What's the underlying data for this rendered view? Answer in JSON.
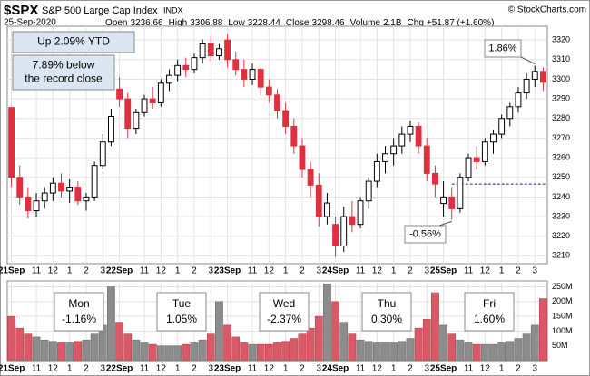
{
  "header": {
    "symbol": "$SPX",
    "name": "S&P 500 Large Cap Index",
    "exchange": "INDX",
    "date": "25-Sep-2020",
    "copyright": "© StockCharts.com",
    "quote": [
      {
        "label": "Open",
        "value": "3236.66"
      },
      {
        "label": "High",
        "value": "3306.88"
      },
      {
        "label": "Low",
        "value": "3228.44"
      },
      {
        "label": "Close",
        "value": "3298.46"
      },
      {
        "label": "Volume",
        "value": "2.1B"
      },
      {
        "label": "Chg",
        "value": "+51.87 (+1.60%)"
      }
    ]
  },
  "chart_data": [
    {
      "type": "candlestick",
      "grid": true,
      "up_color": "#000000",
      "down_color": "#e0303f",
      "categories": [
        "21Sep",
        null,
        null,
        "11",
        null,
        "12",
        null,
        "1",
        null,
        "2",
        null,
        "3",
        null,
        "22Sep",
        null,
        null,
        "11",
        null,
        "12",
        null,
        "1",
        null,
        "2",
        null,
        "3",
        null,
        "23Sep",
        null,
        null,
        "11",
        null,
        "12",
        null,
        "1",
        null,
        "2",
        null,
        "3",
        null,
        "24Sep",
        null,
        null,
        "11",
        null,
        "12",
        null,
        "1",
        null,
        "2",
        null,
        "3",
        null,
        "25Sep",
        null,
        null,
        "11",
        null,
        "12",
        null,
        "1",
        null,
        "2",
        null,
        "3",
        null
      ],
      "open": [
        3285.57,
        3250,
        3240,
        3233,
        3238,
        3242,
        3247,
        3243,
        3245,
        3238,
        3240,
        3256,
        3268,
        3295,
        3290,
        3275,
        3283,
        3290,
        3288,
        3298,
        3302,
        3307,
        3305,
        3311,
        3318,
        3312,
        3320,
        3310,
        3305,
        3300,
        3305,
        3296,
        3292,
        3284,
        3276,
        3266,
        3254,
        3246,
        3230,
        3226,
        3215,
        3230,
        3226,
        3238,
        3248,
        3258,
        3262,
        3266,
        3272,
        3276,
        3266,
        3252,
        3236.66,
        3240,
        3234,
        3250,
        3260,
        3258,
        3268,
        3272,
        3280,
        3286,
        3293,
        3300,
        3304
      ],
      "high": [
        3285.6,
        3256,
        3245,
        3242,
        3245,
        3250,
        3252,
        3249,
        3248,
        3242,
        3258,
        3272,
        3285,
        3301,
        3293,
        3285,
        3292,
        3296,
        3300,
        3305,
        3310,
        3311,
        3313,
        3320.31,
        3322,
        3318,
        3323,
        3314,
        3310,
        3308,
        3306,
        3300,
        3295,
        3288,
        3280,
        3270,
        3258,
        3252,
        3242,
        3230,
        3235,
        3238,
        3240,
        3250,
        3262,
        3266,
        3270,
        3276,
        3279,
        3278,
        3270,
        3256,
        3248,
        3245,
        3252,
        3262,
        3266,
        3270,
        3274,
        3282,
        3288,
        3296,
        3303,
        3306.88,
        3306
      ],
      "low": [
        3245,
        3236,
        3229,
        3230,
        3234,
        3238,
        3240,
        3237,
        3236,
        3233,
        3238,
        3254,
        3266,
        3286,
        3270,
        3272,
        3281,
        3285,
        3286,
        3294,
        3299,
        3301,
        3303,
        3308,
        3309,
        3310,
        3306,
        3302,
        3296,
        3297,
        3292,
        3288,
        3280,
        3272,
        3262,
        3250,
        3240,
        3225,
        3226,
        3209.45,
        3212,
        3222,
        3224,
        3234,
        3245,
        3252,
        3256,
        3262,
        3268,
        3262,
        3248,
        3240,
        3230,
        3228.44,
        3232,
        3248,
        3254,
        3256,
        3262,
        3270,
        3276,
        3283,
        3290,
        3296,
        3294
      ],
      "close": [
        3250,
        3240,
        3233,
        3238,
        3242,
        3247,
        3243,
        3245,
        3238,
        3240,
        3256,
        3268,
        3281.06,
        3290,
        3275,
        3283,
        3290,
        3288,
        3298,
        3302,
        3307,
        3305,
        3311,
        3318,
        3312,
        3315.57,
        3310,
        3305,
        3300,
        3305,
        3296,
        3292,
        3284,
        3276,
        3266,
        3254,
        3246,
        3230,
        3236.92,
        3215,
        3230,
        3226,
        3238,
        3248,
        3258,
        3262,
        3266,
        3272,
        3276,
        3266,
        3252,
        3246.59,
        3240,
        3234,
        3250,
        3260,
        3258,
        3268,
        3272,
        3280,
        3286,
        3293,
        3300,
        3304,
        3298.46
      ],
      "ylim": [
        3206,
        3327
      ],
      "yticks": [
        3210,
        3220,
        3230,
        3240,
        3250,
        3260,
        3270,
        3280,
        3290,
        3300,
        3310,
        3320
      ],
      "reference_line": 3246.59,
      "notes": [
        {
          "text": [
            "Up 2.09% YTD"
          ],
          "color": "#000000"
        },
        {
          "text": [
            "7.89% below",
            "the record close"
          ],
          "color": "#000000"
        },
        {
          "text": [
            "1.86%"
          ],
          "color": "#2a8a2a"
        },
        {
          "text": [
            "-0.56%"
          ],
          "color": "#d0202e"
        }
      ]
    },
    {
      "type": "volume",
      "grid": true,
      "up_color": "#8c8c8c",
      "down_color": "#d95a66",
      "values": [
        150,
        110,
        90,
        80,
        70,
        65,
        60,
        60,
        65,
        70,
        90,
        120,
        250,
        130,
        90,
        70,
        60,
        55,
        50,
        50,
        50,
        55,
        60,
        70,
        90,
        200,
        120,
        80,
        60,
        55,
        55,
        55,
        60,
        65,
        75,
        90,
        110,
        150,
        260,
        200,
        130,
        90,
        70,
        65,
        60,
        60,
        60,
        65,
        75,
        110,
        140,
        230,
        120,
        90,
        70,
        60,
        55,
        55,
        55,
        60,
        65,
        75,
        90,
        120,
        210
      ],
      "ylim": [
        0,
        270
      ],
      "yticks": [
        {
          "value": 50,
          "label": "50M"
        },
        {
          "value": 100,
          "label": "100M"
        },
        {
          "value": 150,
          "label": "150M"
        },
        {
          "value": 200,
          "label": "200M"
        },
        {
          "value": 250,
          "label": "250M"
        }
      ],
      "daily_changes": [
        {
          "day": "Mon",
          "change": "-1.16%",
          "color": "#d0202e"
        },
        {
          "day": "Tue",
          "change": "1.05%",
          "color": "#2a8a2a"
        },
        {
          "day": "Wed",
          "change": "-2.37%",
          "color": "#d0202e"
        },
        {
          "day": "Thu",
          "change": "0.30%",
          "color": "#2a8a2a"
        },
        {
          "day": "Fri",
          "change": "1.60%",
          "color": "#2a8a2a"
        }
      ]
    }
  ]
}
